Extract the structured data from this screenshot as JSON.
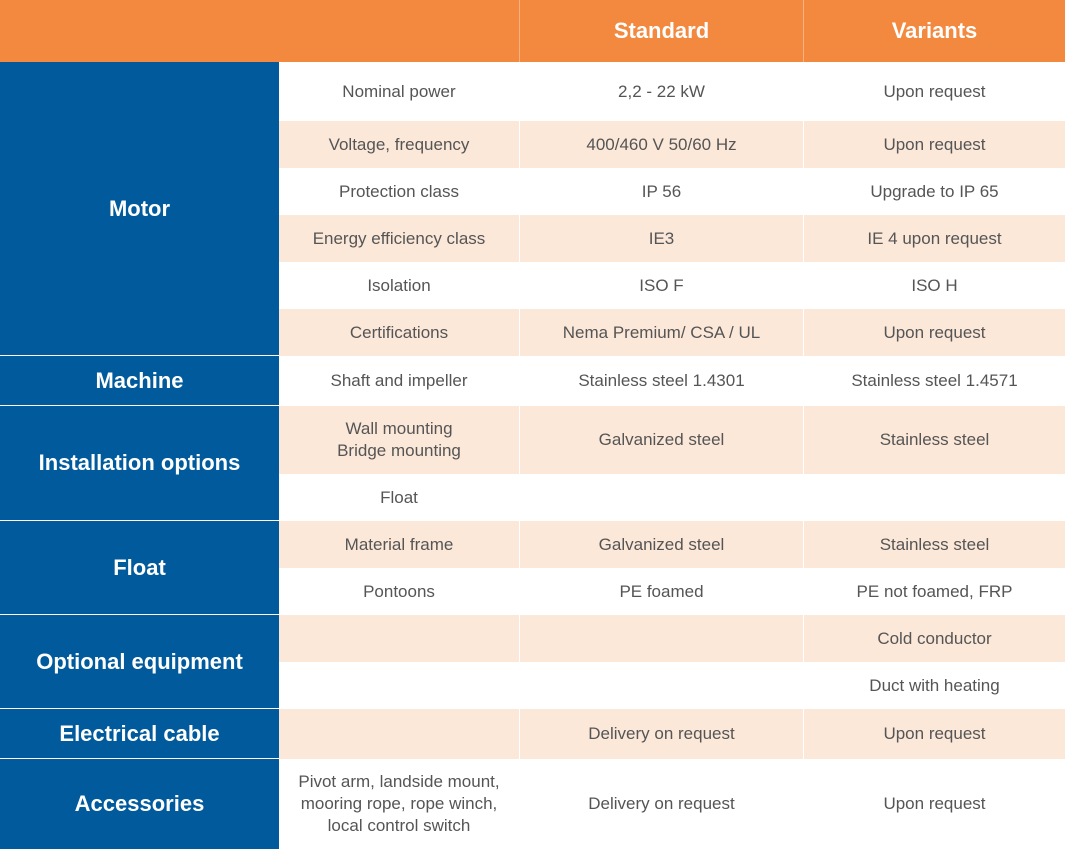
{
  "header": {
    "col_standard": "Standard",
    "col_variants": "Variants"
  },
  "groups": {
    "motor": "Motor",
    "machine": "Machine",
    "installation": "Installation options",
    "float": "Float",
    "optional": "Optional equipment",
    "cable": "Electrical cable",
    "accessories": "Accessories"
  },
  "rows": [
    {
      "feature": "Nominal power",
      "standard": "2,2 - 22 kW",
      "variants": "Upon request"
    },
    {
      "feature": "Voltage, frequency",
      "standard": "400/460 V 50/60 Hz",
      "variants": "Upon request"
    },
    {
      "feature": "Protection class",
      "standard": "IP 56",
      "variants": "Upgrade to IP 65"
    },
    {
      "feature": "Energy efficiency class",
      "standard": "IE3",
      "variants": "IE 4 upon request"
    },
    {
      "feature": "Isolation",
      "standard": "ISO F",
      "variants": "ISO H"
    },
    {
      "feature": "Certifications",
      "standard": "Nema Premium/ CSA / UL",
      "variants": "Upon request"
    },
    {
      "feature": "Shaft and impeller",
      "standard": "Stainless steel 1.4301",
      "variants": "Stainless steel 1.4571"
    },
    {
      "feature": "Wall mounting\nBridge mounting",
      "standard": "Galvanized steel",
      "variants": "Stainless steel"
    },
    {
      "feature": "Float",
      "standard": "",
      "variants": ""
    },
    {
      "feature": "Material frame",
      "standard": "Galvanized steel",
      "variants": "Stainless steel"
    },
    {
      "feature": "Pontoons",
      "standard": "PE foamed",
      "variants": "PE not foamed, FRP"
    },
    {
      "feature": "",
      "standard": "",
      "variants": "Cold conductor"
    },
    {
      "feature": "",
      "standard": "",
      "variants": "Duct with heating"
    },
    {
      "feature": "",
      "standard": "Delivery on request",
      "variants": "Upon request"
    },
    {
      "feature": "Pivot arm, landside mount,\nmooring rope, rope winch,\nlocal control switch",
      "standard": "Delivery on request",
      "variants": "Upon request"
    }
  ]
}
